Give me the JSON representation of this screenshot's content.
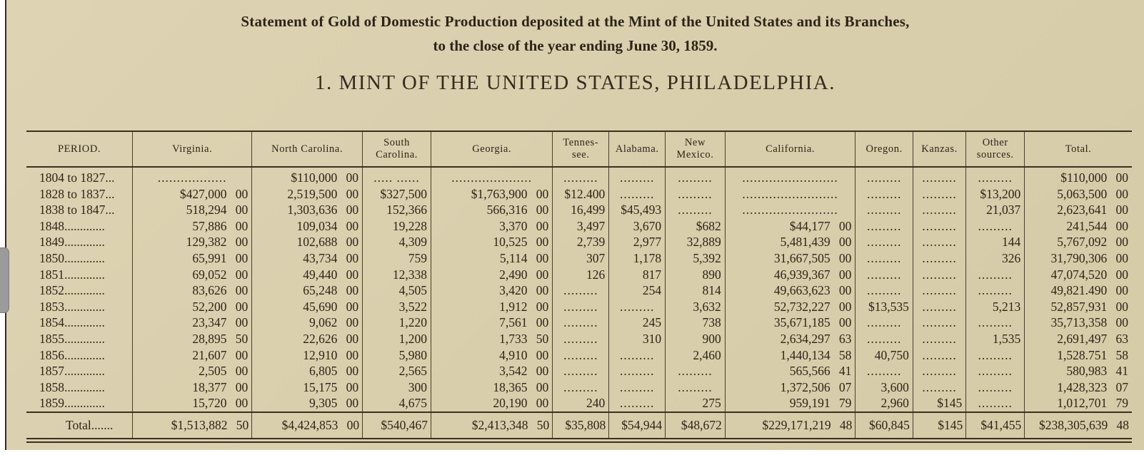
{
  "page": {
    "title_line1": "Statement of Gold of Domestic Production deposited at the Mint of the United States and its Branches,",
    "title_line2": "to the close of the year ending June 30, 1859.",
    "section_heading": "1. MINT OF THE UNITED STATES, PHILADELPHIA.",
    "paper_color": "#d9cfad",
    "ink_color": "#2c2517"
  },
  "table": {
    "columns": [
      "PERIOD.",
      "Virginia.",
      "North Carolina.",
      "South\nCarolina.",
      "Georgia.",
      "Tennes-\nsee.",
      "Alabama.",
      "New\nMexico.",
      "California.",
      "Oregon.",
      "Kanzas.",
      "Other\nsources.",
      "Total."
    ],
    "col_widths_pct": [
      9.6,
      10.8,
      10.0,
      6.2,
      11.0,
      5.1,
      5.1,
      5.4,
      11.8,
      5.2,
      4.8,
      5.3,
      9.7
    ],
    "rows": [
      [
        "1804 to 1827...",
        "..................",
        "$110,000 00",
        "..... ......",
        ".....................",
        ".........",
        ".........",
        ".........",
        ".........................",
        ".........",
        ".........",
        ".........",
        "$110,000 00"
      ],
      [
        "1828 to 1837...",
        "$427,000 00",
        "2,519,500 00",
        "$327,500",
        "$1,763,900 00",
        "$12.400",
        ".........",
        ".........",
        ".........................",
        ".........",
        ".........",
        "$13,200",
        "5,063,500 00"
      ],
      [
        "1838 to 1847...",
        "518,294 00",
        "1,303,636 00",
        "152,366",
        "566,316 00",
        "16,499",
        "$45,493",
        ".........",
        ".........................",
        ".........",
        ".........",
        "21,037",
        "2,623,641 00"
      ],
      [
        "1848.............",
        "57,886 00",
        "109,034 00",
        "19,228",
        "3,370 00",
        "3,497",
        "3,670",
        "$682",
        "$44,177 00",
        ".........",
        ".........",
        ".........",
        "241,544 00"
      ],
      [
        "1849.............",
        "129,382 00",
        "102,688 00",
        "4,309",
        "10,525 00",
        "2,739",
        "2,977",
        "32,889",
        "5,481,439 00",
        ".........",
        ".........",
        "144",
        "5,767,092 00"
      ],
      [
        "1850.............",
        "65,991 00",
        "43,734 00",
        "759",
        "5,114 00",
        "307",
        "1,178",
        "5,392",
        "31,667,505 00",
        ".........",
        ".........",
        "326",
        "31,790,306 00"
      ],
      [
        "1851.............",
        "69,052 00",
        "49,440 00",
        "12,338",
        "2,490 00",
        "126",
        "817",
        "890",
        "46,939,367 00",
        ".........",
        ".........",
        ".........",
        "47,074,520 00"
      ],
      [
        "1852.............",
        "83,626 00",
        "65,248 00",
        "4,505",
        "3,420 00",
        ".........",
        "254",
        "814",
        "49,663,623 00",
        ".........",
        ".........",
        ".........",
        "49,821.490 00"
      ],
      [
        "1853.............",
        "52,200 00",
        "45,690 00",
        "3,522",
        "1,912 00",
        ".........",
        ".........",
        "3,632",
        "52,732,227 00",
        "$13,535",
        ".........",
        "5,213",
        "52,857,931 00"
      ],
      [
        "1854.............",
        "23,347 00",
        "9,062 00",
        "1,220",
        "7,561 00",
        ".........",
        "245",
        "738",
        "35,671,185 00",
        ".........",
        ".........",
        ".........",
        "35,713,358 00"
      ],
      [
        "1855.............",
        "28,895 50",
        "22,626 00",
        "1,200",
        "1,733 50",
        ".........",
        "310",
        "900",
        "2,634,297 63",
        ".........",
        ".........",
        "1,535",
        "2,691,497 63"
      ],
      [
        "1856.............",
        "21,607 00",
        "12,910 00",
        "5,980",
        "4,910 00",
        ".........",
        ".........",
        "2,460",
        "1,440,134 58",
        "40,750",
        ".........",
        ".........",
        "1,528.751 58"
      ],
      [
        "1857.............",
        "2,505 00",
        "6,805 00",
        "2,565",
        "3,542 00",
        ".........",
        ".........",
        ".........",
        "565,566 41",
        ".........",
        ".........",
        ".........",
        "580,983 41"
      ],
      [
        "1858.............",
        "18,377 00",
        "15,175 00",
        "300",
        "18,365 00",
        ".........",
        ".........",
        ".........",
        "1,372,506 07",
        "3,600",
        ".........",
        ".........",
        "1,428,323 07"
      ],
      [
        "1859.............",
        "15,720 00",
        "9,305 00",
        "4,675",
        "20,190 00",
        "240",
        ".........",
        "275",
        "959,191 79",
        "2,960",
        "$145",
        ".........",
        "1,012,701 79"
      ]
    ],
    "total_row": [
      "Total.......",
      "$1,513,882 50",
      "$4,424,853 00",
      "$540,467",
      "$2,413,348 50",
      "$35,808",
      "$54,944",
      "$48,672",
      "$229,171,219 48",
      "$60,845",
      "$145",
      "$41,455",
      "$238,305,639 48"
    ]
  }
}
